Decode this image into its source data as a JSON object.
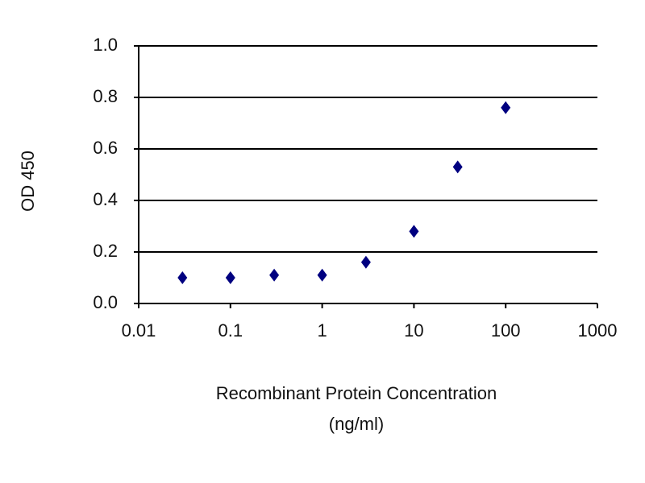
{
  "chart_data": {
    "type": "line",
    "ylabel": "OD 450",
    "xlabel": [
      "Recombinant Protein Concentration",
      "(ng/ml)"
    ],
    "x": [
      0.03,
      0.1,
      0.3,
      1,
      3,
      10,
      30,
      100
    ],
    "series": [
      {
        "color": "#000080",
        "values": [
          0.1,
          0.1,
          0.11,
          0.11,
          0.16,
          0.28,
          0.53,
          0.76
        ]
      }
    ],
    "xscale": "log",
    "xlim": [
      0.01,
      1000
    ],
    "xticks": [
      0.01,
      0.1,
      1,
      10,
      100,
      1000
    ],
    "ylim": [
      0,
      1
    ],
    "yticks": [
      {
        "value": 0,
        "label": "0.0"
      },
      0.2,
      0.4,
      0.6,
      0.8,
      {
        "value": 1,
        "label": "1.0"
      }
    ],
    "grid": true
  }
}
